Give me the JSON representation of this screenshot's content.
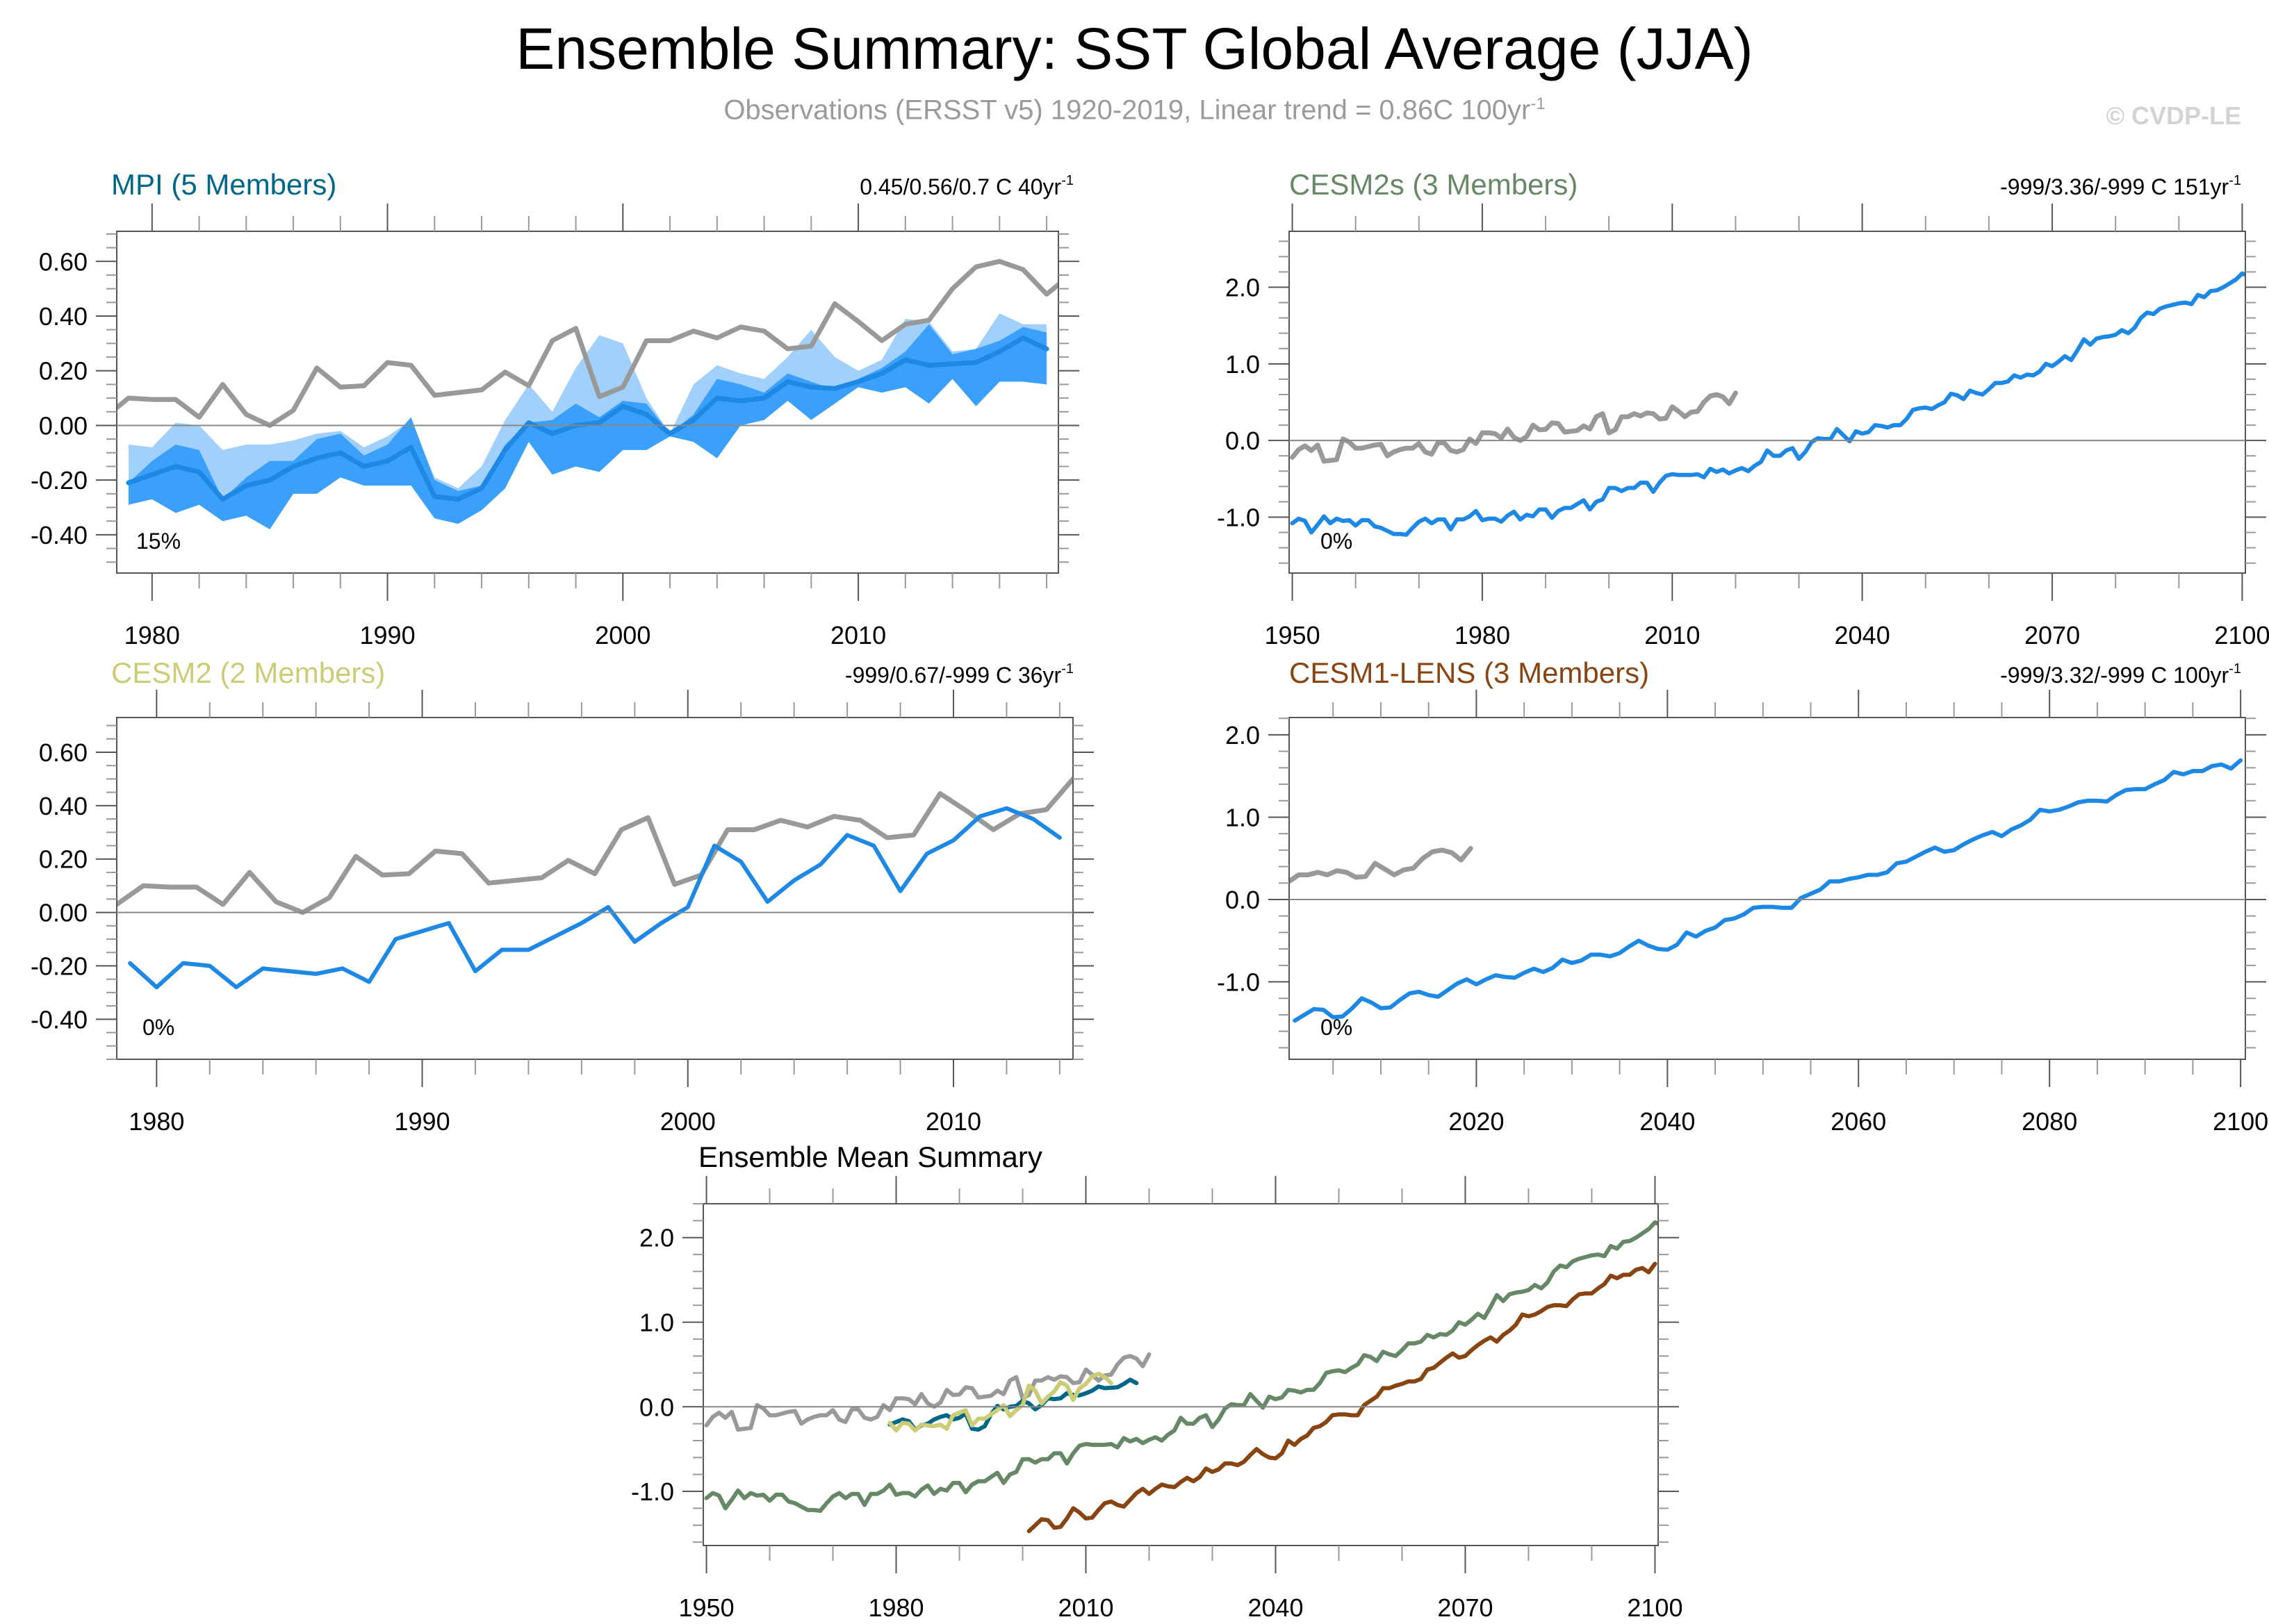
{
  "header": {
    "title": "Ensemble Summary: SST Global Average (JJA)",
    "subtitle": "Observations (ERSST v5) 1920-2019, Linear trend = 0.86C 100yr",
    "subtitle_sup": "-1",
    "copyright": "© CVDP-LE"
  },
  "colors": {
    "obs": "#999999",
    "ens_mean": "#1e88e5",
    "band_outer": "#a0d0fb",
    "band_inner": "#3aa0fb",
    "zero_line": "#888888",
    "mpi": "#006688",
    "cesm2s": "#668866",
    "cesm2": "#cccc77",
    "cesm1_lens": "#884411"
  },
  "chart_data": [
    {
      "id": "mpi",
      "type": "line",
      "title": "MPI (5 Members)",
      "title_color": "#006688",
      "trend_label": "0.45/0.56/0.7 C 40yr",
      "trend_sup": "-1",
      "pct_label": "15%",
      "xlim": [
        1978.5,
        2018.5
      ],
      "ylim": [
        -0.54,
        0.71
      ],
      "xticks": [
        1980,
        1990,
        2000,
        2010
      ],
      "xminor": 2,
      "yticks": [
        0.6,
        0.4,
        0.2,
        0.0,
        -0.4,
        -0.2
      ],
      "ytick_labels": [
        "0.60",
        "0.40",
        "0.20",
        "0.00",
        "-0.40",
        "-0.20"
      ],
      "yminor": 0.05,
      "obs": {
        "x_start": 1978,
        "values": [
          0.03,
          0.1,
          0.095,
          0.095,
          0.03,
          0.15,
          0.04,
          0.0,
          0.055,
          0.21,
          0.14,
          0.145,
          0.23,
          0.22,
          0.11,
          0.12,
          0.13,
          0.195,
          0.145,
          0.31,
          0.355,
          0.105,
          0.14,
          0.31,
          0.31,
          0.345,
          0.32,
          0.36,
          0.345,
          0.28,
          0.29,
          0.445,
          0.38,
          0.31,
          0.37,
          0.385,
          0.5,
          0.58,
          0.6,
          0.57,
          0.48,
          0.55
        ]
      },
      "ens_mean": {
        "x_start": 1979,
        "values": [
          -0.21,
          -0.18,
          -0.15,
          -0.17,
          -0.27,
          -0.22,
          -0.2,
          -0.15,
          -0.12,
          -0.1,
          -0.15,
          -0.13,
          -0.08,
          -0.26,
          -0.27,
          -0.23,
          -0.09,
          0.01,
          -0.03,
          0.0,
          0.01,
          0.07,
          0.04,
          -0.03,
          0.02,
          0.1,
          0.09,
          0.1,
          0.16,
          0.14,
          0.135,
          0.16,
          0.19,
          0.24,
          0.22,
          0.225,
          0.23,
          0.27,
          0.32,
          0.28
        ]
      },
      "band_outer_upper": [
        -0.07,
        -0.08,
        0.01,
        0.0,
        -0.09,
        -0.07,
        -0.07,
        -0.055,
        -0.03,
        -0.02,
        -0.08,
        -0.04,
        0.02,
        -0.19,
        -0.23,
        -0.15,
        0.02,
        0.15,
        0.05,
        0.21,
        0.33,
        0.3,
        0.1,
        -0.03,
        0.15,
        0.22,
        0.19,
        0.17,
        0.25,
        0.35,
        0.25,
        0.2,
        0.24,
        0.39,
        0.38,
        0.27,
        0.28,
        0.41,
        0.37,
        0.37
      ],
      "band_inner_upper": [
        -0.21,
        -0.13,
        -0.07,
        -0.09,
        -0.27,
        -0.19,
        -0.13,
        -0.13,
        -0.05,
        -0.03,
        -0.11,
        -0.07,
        0.03,
        -0.2,
        -0.24,
        -0.22,
        -0.07,
        0.01,
        0.02,
        0.08,
        0.03,
        0.09,
        0.08,
        -0.03,
        0.04,
        0.17,
        0.15,
        0.12,
        0.19,
        0.16,
        0.13,
        0.17,
        0.21,
        0.27,
        0.37,
        0.26,
        0.28,
        0.31,
        0.36,
        0.34
      ],
      "band_inner_lower": [
        -0.29,
        -0.27,
        -0.32,
        -0.29,
        -0.35,
        -0.33,
        -0.38,
        -0.25,
        -0.25,
        -0.19,
        -0.22,
        -0.22,
        -0.22,
        -0.34,
        -0.36,
        -0.31,
        -0.23,
        -0.06,
        -0.18,
        -0.15,
        -0.17,
        -0.09,
        -0.09,
        -0.04,
        -0.06,
        -0.12,
        0.0,
        0.02,
        0.09,
        0.02,
        0.08,
        0.14,
        0.12,
        0.14,
        0.08,
        0.17,
        0.07,
        0.16,
        0.16,
        0.15
      ]
    },
    {
      "id": "cesm2s",
      "type": "line",
      "title": "CESM2s (3 Members)",
      "title_color": "#668866",
      "trend_label": "-999/3.36/-999 C 151yr",
      "trend_sup": "-1",
      "pct_label": "0%",
      "xlim": [
        1949.5,
        2100.5
      ],
      "ylim": [
        -1.73,
        2.73
      ],
      "xticks": [
        1950,
        1980,
        2010,
        2040,
        2070,
        2100
      ],
      "xminor": 10,
      "yticks": [
        2.0,
        1.0,
        0.0,
        -1.0
      ],
      "ytick_labels": [
        "2.0",
        "1.0",
        "0.0",
        "-1.0"
      ],
      "yminor": 0.2,
      "obs": {
        "x_start": 1950,
        "values": [
          -0.22,
          -0.12,
          -0.07,
          -0.13,
          -0.06,
          -0.27,
          -0.26,
          -0.25,
          0.02,
          -0.02,
          -0.1,
          -0.1,
          -0.08,
          -0.06,
          -0.05,
          -0.2,
          -0.15,
          -0.12,
          -0.1,
          -0.1,
          -0.04,
          -0.15,
          -0.18,
          -0.03,
          -0.03,
          -0.13,
          -0.15,
          -0.12,
          0.02,
          -0.04,
          0.1,
          0.1,
          0.09,
          0.03,
          0.15,
          0.04,
          0.0,
          0.05,
          0.2,
          0.14,
          0.145,
          0.23,
          0.22,
          0.11,
          0.12,
          0.13,
          0.19,
          0.15,
          0.31,
          0.35,
          0.1,
          0.14,
          0.31,
          0.31,
          0.35,
          0.32,
          0.36,
          0.35,
          0.28,
          0.29,
          0.44,
          0.38,
          0.31,
          0.37,
          0.38,
          0.5,
          0.58,
          0.6,
          0.57,
          0.48,
          0.62
        ]
      },
      "ens_mean": {
        "x_start": 1950,
        "values": [
          -1.08,
          -1.02,
          -1.05,
          -1.2,
          -1.1,
          -0.99,
          -1.08,
          -1.02,
          -1.05,
          -1.04,
          -1.11,
          -1.04,
          -1.04,
          -1.12,
          -1.14,
          -1.18,
          -1.22,
          -1.22,
          -1.23,
          -1.14,
          -1.06,
          -1.02,
          -1.08,
          -1.03,
          -1.03,
          -1.16,
          -1.03,
          -1.03,
          -0.99,
          -0.92,
          -1.04,
          -1.02,
          -1.02,
          -1.06,
          -0.98,
          -0.93,
          -1.03,
          -0.97,
          -0.99,
          -0.9,
          -0.9,
          -1.01,
          -0.92,
          -0.88,
          -0.88,
          -0.83,
          -0.78,
          -0.9,
          -0.8,
          -0.77,
          -0.62,
          -0.62,
          -0.66,
          -0.62,
          -0.62,
          -0.55,
          -0.55,
          -0.67,
          -0.55,
          -0.46,
          -0.44,
          -0.45,
          -0.45,
          -0.45,
          -0.44,
          -0.48,
          -0.37,
          -0.41,
          -0.38,
          -0.43,
          -0.39,
          -0.36,
          -0.4,
          -0.33,
          -0.28,
          -0.13,
          -0.2,
          -0.2,
          -0.13,
          -0.1,
          -0.24,
          -0.15,
          -0.02,
          0.03,
          0.02,
          0.02,
          0.15,
          0.07,
          -0.01,
          0.12,
          0.09,
          0.11,
          0.2,
          0.19,
          0.17,
          0.2,
          0.2,
          0.28,
          0.4,
          0.42,
          0.43,
          0.41,
          0.46,
          0.5,
          0.61,
          0.59,
          0.54,
          0.65,
          0.62,
          0.6,
          0.67,
          0.75,
          0.75,
          0.77,
          0.85,
          0.82,
          0.86,
          0.85,
          0.9,
          1.0,
          0.97,
          1.03,
          1.1,
          1.05,
          1.18,
          1.32,
          1.25,
          1.33,
          1.35,
          1.36,
          1.38,
          1.44,
          1.4,
          1.47,
          1.6,
          1.67,
          1.65,
          1.72,
          1.75,
          1.77,
          1.79,
          1.8,
          1.78,
          1.9,
          1.87,
          1.95,
          1.96,
          2.0,
          2.05,
          2.1,
          2.18,
          2.15,
          2.17
        ]
      }
    },
    {
      "id": "cesm2",
      "type": "line",
      "title": "CESM2 (2 Members)",
      "title_color": "#cccc77",
      "trend_label": "-999/0.67/-999 C 36yr",
      "trend_sup": "-1",
      "pct_label": "0%",
      "xlim": [
        1978.5,
        2014.5
      ],
      "ylim": [
        -0.55,
        0.73
      ],
      "xticks": [
        1980,
        1990,
        2000,
        2010
      ],
      "xminor": 2,
      "yticks": [
        0.6,
        0.4,
        0.2,
        0.0,
        -0.4,
        -0.2
      ],
      "ytick_labels": [
        "0.60",
        "0.40",
        "0.20",
        "0.00",
        "-0.40",
        "-0.20"
      ],
      "yminor": 0.05,
      "obs": {
        "x_start": 1978.5,
        "values": [
          0.03,
          0.1,
          0.095,
          0.095,
          0.03,
          0.15,
          0.04,
          0.0,
          0.055,
          0.21,
          0.14,
          0.145,
          0.23,
          0.22,
          0.11,
          0.12,
          0.13,
          0.195,
          0.145,
          0.31,
          0.355,
          0.105,
          0.14,
          0.31,
          0.31,
          0.345,
          0.32,
          0.36,
          0.345,
          0.28,
          0.29,
          0.445,
          0.38,
          0.31,
          0.37,
          0.385,
          0.5,
          0.54
        ]
      },
      "ens_mean": {
        "x_start": 1979,
        "values": [
          -0.19,
          -0.28,
          -0.19,
          -0.2,
          -0.28,
          -0.21,
          -0.22,
          -0.23,
          -0.21,
          -0.26,
          -0.1,
          -0.07,
          -0.04,
          -0.22,
          -0.14,
          -0.14,
          -0.09,
          -0.04,
          0.02,
          -0.11,
          -0.04,
          0.02,
          0.25,
          0.19,
          0.04,
          0.12,
          0.18,
          0.29,
          0.25,
          0.08,
          0.22,
          0.27,
          0.36,
          0.39,
          0.35,
          0.28
        ]
      }
    },
    {
      "id": "cesm1_lens",
      "type": "line",
      "title": "CESM1-LENS (3 Members)",
      "title_color": "#884411",
      "trend_label": "-999/3.32/-999 C 100yr",
      "trend_sup": "-1",
      "pct_label": "0%",
      "xlim": [
        2000.4,
        2100.5
      ],
      "ylim": [
        -1.94,
        2.21
      ],
      "xticks": [
        2020,
        2040,
        2060,
        2080,
        2100
      ],
      "xminor": 5,
      "yticks": [
        2.0,
        1.0,
        0.0,
        -1.0
      ],
      "ytick_labels": [
        "2.0",
        "1.0",
        "0.0",
        "-1.0"
      ],
      "yminor": 0.2,
      "obs": {
        "x_start": 2000.4,
        "values": [
          0.22,
          0.3,
          0.3,
          0.33,
          0.3,
          0.35,
          0.33,
          0.27,
          0.28,
          0.44,
          0.37,
          0.3,
          0.36,
          0.38,
          0.5,
          0.58,
          0.6,
          0.57,
          0.48,
          0.62
        ]
      },
      "ens_mean": {
        "x_start": 2001,
        "values": [
          -1.47,
          -1.4,
          -1.33,
          -1.34,
          -1.43,
          -1.42,
          -1.32,
          -1.2,
          -1.25,
          -1.32,
          -1.31,
          -1.22,
          -1.14,
          -1.12,
          -1.16,
          -1.18,
          -1.1,
          -1.02,
          -0.97,
          -1.03,
          -0.97,
          -0.92,
          -0.94,
          -0.95,
          -0.89,
          -0.84,
          -0.88,
          -0.83,
          -0.73,
          -0.77,
          -0.74,
          -0.67,
          -0.67,
          -0.69,
          -0.65,
          -0.57,
          -0.5,
          -0.56,
          -0.6,
          -0.61,
          -0.55,
          -0.4,
          -0.45,
          -0.38,
          -0.34,
          -0.25,
          -0.23,
          -0.18,
          -0.1,
          -0.09,
          -0.09,
          -0.1,
          -0.1,
          0.02,
          0.07,
          0.12,
          0.22,
          0.22,
          0.25,
          0.27,
          0.3,
          0.3,
          0.33,
          0.44,
          0.46,
          0.52,
          0.58,
          0.63,
          0.58,
          0.6,
          0.67,
          0.73,
          0.78,
          0.82,
          0.77,
          0.85,
          0.9,
          0.97,
          1.09,
          1.07,
          1.09,
          1.13,
          1.18,
          1.2,
          1.2,
          1.19,
          1.27,
          1.33,
          1.34,
          1.34,
          1.4,
          1.45,
          1.55,
          1.52,
          1.56,
          1.56,
          1.62,
          1.64,
          1.59,
          1.69
        ]
      }
    },
    {
      "id": "ensemble_mean_summary",
      "type": "line",
      "title": "Ensemble Mean Summary",
      "title_color": "#000000",
      "xlim": [
        1949.5,
        2100.5
      ],
      "ylim": [
        -1.64,
        2.4
      ],
      "xticks": [
        1950,
        1980,
        2010,
        2040,
        2070,
        2100
      ],
      "xminor": 10,
      "yticks": [
        2.0,
        1.0,
        0.0,
        -1.0
      ],
      "ytick_labels": [
        "2.0",
        "1.0",
        "0.0",
        "-1.0"
      ],
      "yminor": 0.2,
      "series": [
        {
          "name": "Observations",
          "color": "#999999",
          "ref": "cesm2s.obs"
        },
        {
          "name": "CESM2s",
          "color": "#668866",
          "ref": "cesm2s.ens_mean"
        },
        {
          "name": "CESM1-LENS",
          "color": "#884411",
          "ref": "cesm1_lens.ens_mean"
        },
        {
          "name": "MPI",
          "color": "#006688",
          "ref": "mpi.ens_mean"
        },
        {
          "name": "CESM2",
          "color": "#cccc77",
          "ref": "cesm2.ens_mean"
        }
      ]
    }
  ]
}
